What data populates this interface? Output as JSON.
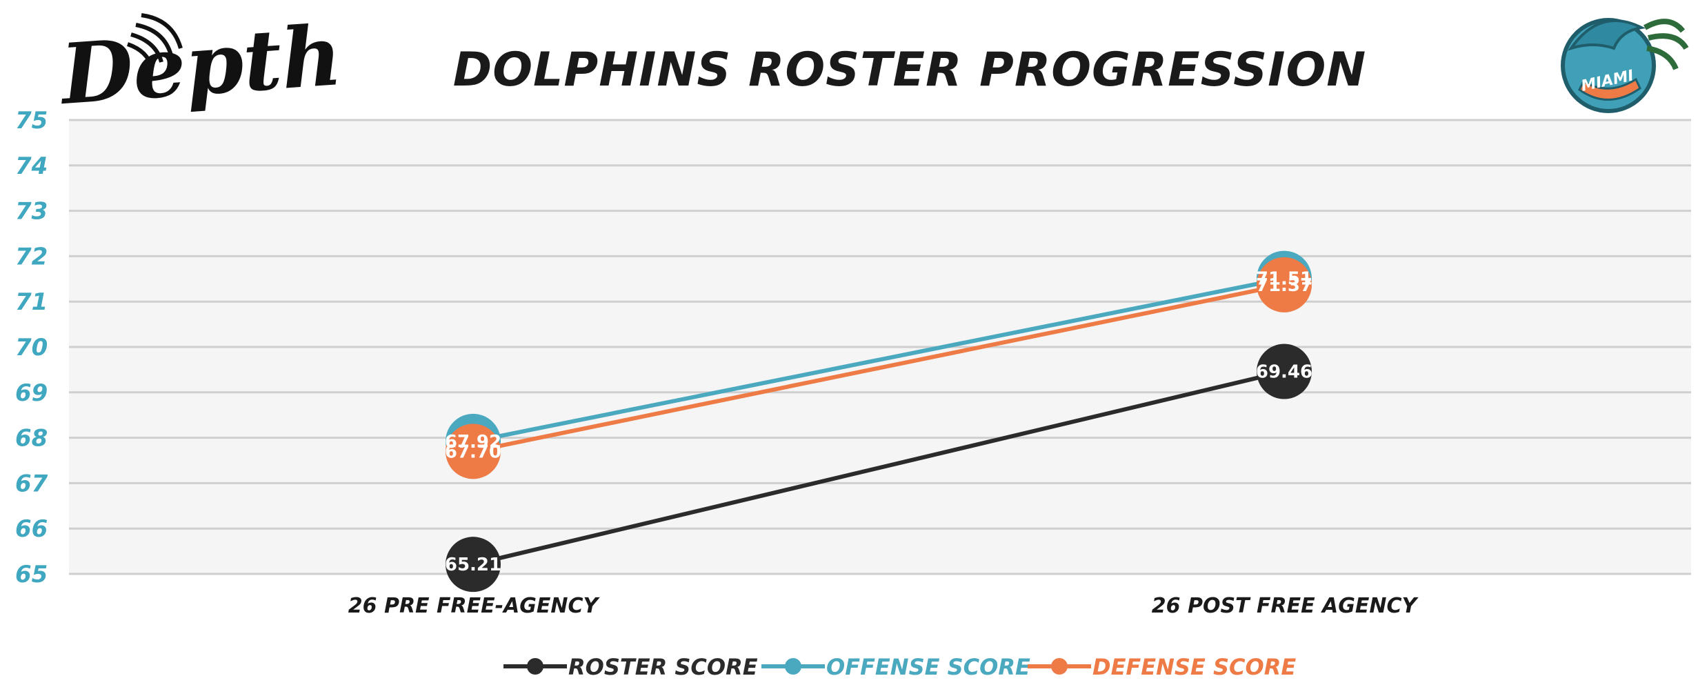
{
  "brand": {
    "logo_text": "Depth",
    "badge_text": "MIAMI"
  },
  "colors": {
    "roster": "#2b2b2b",
    "offense": "#4aa8bf",
    "defense": "#ee7a45",
    "plot_bg": "#f5f5f5",
    "grid": "#cfcfcf",
    "ytick": "#3fa7bf",
    "title": "#1a1a1a"
  },
  "chart_data": {
    "type": "line",
    "title": "DOLPHINS ROSTER PROGRESSION",
    "categories": [
      "26 PRE FREE-AGENCY",
      "26 POST FREE AGENCY"
    ],
    "ylim": [
      65,
      75
    ],
    "yticks": [
      65,
      66,
      67,
      68,
      69,
      70,
      71,
      72,
      73,
      74,
      75
    ],
    "grid": true,
    "legend_position": "bottom",
    "series": [
      {
        "name": "ROSTER SCORE",
        "color": "#2b2b2b",
        "values": [
          65.21,
          69.46
        ],
        "labels": [
          "65.21",
          "69.46"
        ]
      },
      {
        "name": "OFFENSE SCORE",
        "color": "#4aa8bf",
        "values": [
          67.92,
          71.51
        ],
        "labels": [
          "67.92",
          "71.51"
        ]
      },
      {
        "name": "DEFENSE SCORE",
        "color": "#ee7a45",
        "values": [
          67.7,
          71.37
        ],
        "labels": [
          "67.70",
          "71.37"
        ]
      }
    ]
  }
}
